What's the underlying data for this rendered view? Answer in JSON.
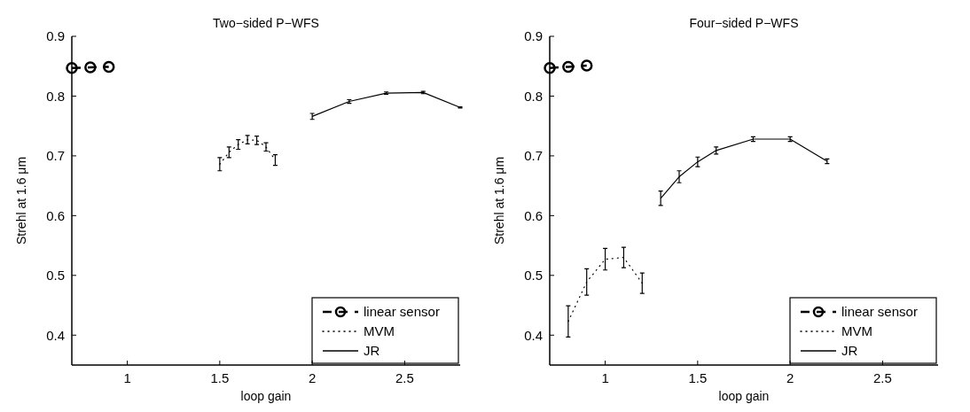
{
  "chart_data": [
    {
      "type": "line",
      "title": "Two−sided P−WFS",
      "xlabel": "loop gain",
      "ylabel": "Strehl at 1.6 μm",
      "xlim": [
        0.7,
        2.8
      ],
      "ylim": [
        0.35,
        0.9
      ],
      "xticks": [
        1,
        1.5,
        2,
        2.5
      ],
      "yticks": [
        0.4,
        0.5,
        0.6,
        0.7,
        0.8,
        0.9
      ],
      "grid": false,
      "legend": "bottom right",
      "series": [
        {
          "name": "linear sensor",
          "color": "#000000",
          "line_style": "dashed",
          "marker": "circle",
          "x": [
            0.7,
            0.8,
            0.9
          ],
          "values": [
            0.847,
            0.848,
            0.849
          ]
        },
        {
          "name": "MVM",
          "color": "#000000",
          "line_style": "dotted",
          "x": [
            1.5,
            1.55,
            1.6,
            1.65,
            1.7,
            1.75,
            1.8
          ],
          "values": [
            0.686,
            0.706,
            0.719,
            0.727,
            0.726,
            0.715,
            0.693
          ],
          "errors": [
            0.011,
            0.009,
            0.008,
            0.007,
            0.007,
            0.007,
            0.009
          ]
        },
        {
          "name": "JR",
          "color": "#000000",
          "line_style": "solid",
          "x": [
            2.0,
            2.2,
            2.4,
            2.6,
            2.8
          ],
          "values": [
            0.766,
            0.791,
            0.805,
            0.806,
            0.781
          ],
          "errors": [
            0.005,
            0.003,
            0.002,
            0.002,
            0.001
          ]
        }
      ]
    },
    {
      "type": "line",
      "title": "Four−sided P−WFS",
      "xlabel": "loop gain",
      "ylabel": "Strehl at 1.6 μm",
      "xlim": [
        0.7,
        2.8
      ],
      "ylim": [
        0.35,
        0.9
      ],
      "xticks": [
        1,
        1.5,
        2,
        2.5
      ],
      "yticks": [
        0.4,
        0.5,
        0.6,
        0.7,
        0.8,
        0.9
      ],
      "grid": false,
      "legend": "bottom right",
      "series": [
        {
          "name": "linear sensor",
          "color": "#000000",
          "line_style": "dashed",
          "marker": "circle",
          "x": [
            0.7,
            0.8,
            0.9
          ],
          "values": [
            0.847,
            0.849,
            0.851
          ]
        },
        {
          "name": "MVM",
          "color": "#000000",
          "line_style": "dotted",
          "x": [
            0.8,
            0.9,
            1.0,
            1.1,
            1.2
          ],
          "values": [
            0.423,
            0.489,
            0.527,
            0.53,
            0.487
          ],
          "errors": [
            0.026,
            0.022,
            0.018,
            0.017,
            0.017
          ]
        },
        {
          "name": "JR",
          "color": "#000000",
          "line_style": "solid",
          "x": [
            1.3,
            1.4,
            1.5,
            1.6,
            1.8,
            2.0,
            2.2
          ],
          "values": [
            0.629,
            0.665,
            0.69,
            0.709,
            0.728,
            0.728,
            0.691
          ],
          "errors": [
            0.012,
            0.01,
            0.008,
            0.006,
            0.004,
            0.004,
            0.004
          ]
        }
      ]
    }
  ]
}
